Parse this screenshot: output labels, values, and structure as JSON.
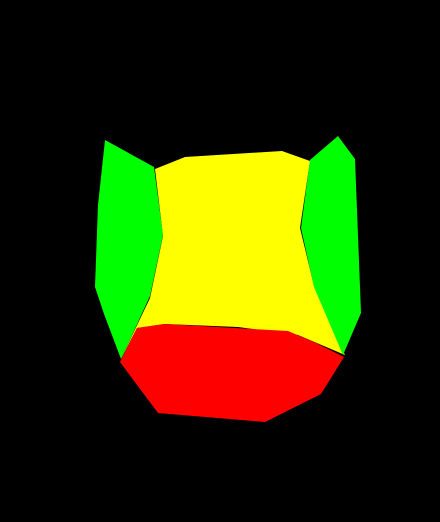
{
  "background_color": "#000000",
  "faces": [
    {
      "name": "yellow-front-face",
      "color": "#ffff00"
    },
    {
      "name": "left-green-face",
      "color": "#00ff00"
    },
    {
      "name": "right-green-face",
      "color": "#00ff00"
    },
    {
      "name": "red-bottom-face",
      "color": "#ff0000"
    }
  ]
}
